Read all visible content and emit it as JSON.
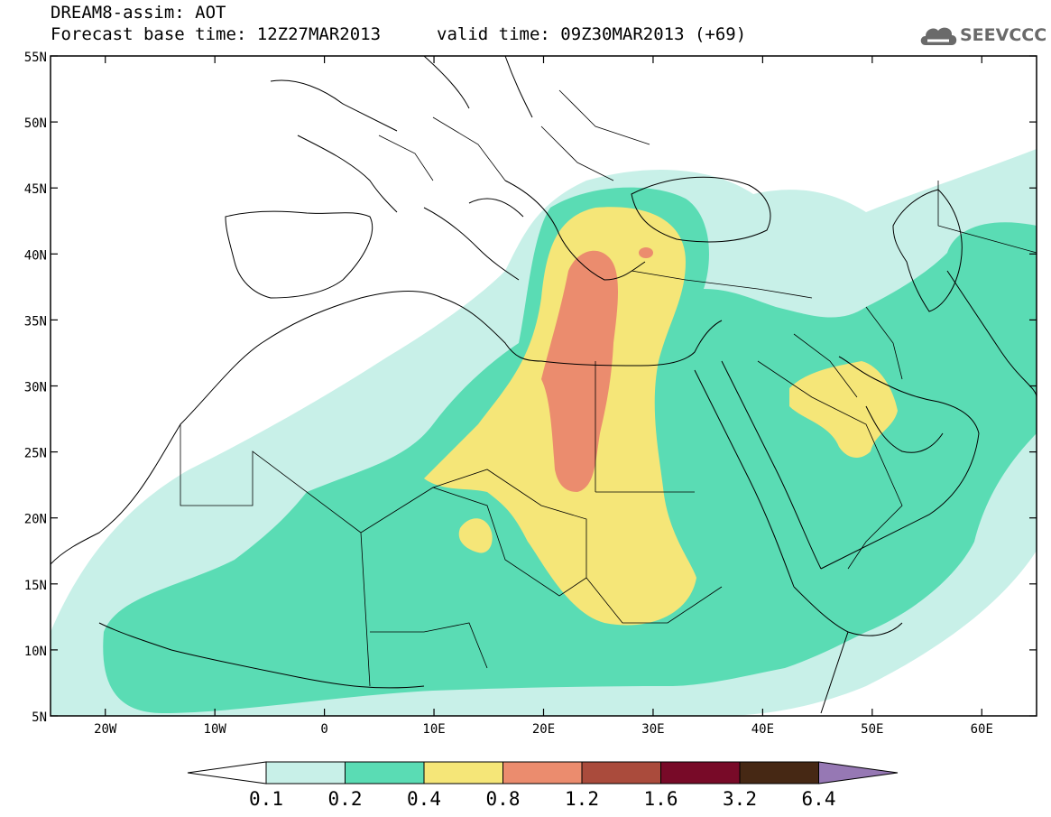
{
  "header": {
    "title": "DREAM8-assim: AOT",
    "base_time": "Forecast base time: 12Z27MAR2013",
    "valid_time": "valid time: 09Z30MAR2013 (+69)"
  },
  "logo": {
    "text": "SEEVCCC",
    "icon": "cloud-icon"
  },
  "map": {
    "lat_ticks": [
      "55N",
      "50N",
      "45N",
      "40N",
      "35N",
      "30N",
      "25N",
      "20N",
      "15N",
      "10N",
      "5N"
    ],
    "lon_ticks": [
      "20W",
      "10W",
      "0",
      "10E",
      "20E",
      "30E",
      "40E",
      "50E",
      "60E"
    ],
    "lon_range": [
      -25,
      65
    ],
    "lat_range": [
      5,
      55
    ]
  },
  "colorbar": {
    "labels": [
      "0.1",
      "0.2",
      "0.4",
      "0.8",
      "1.2",
      "1.6",
      "3.2",
      "6.4"
    ],
    "colors": [
      "#ffffff",
      "#c8f0e8",
      "#5adcb4",
      "#f5e678",
      "#eb8c6e",
      "#aa4b3c",
      "#780a28",
      "#462814",
      "#9678b4"
    ]
  }
}
